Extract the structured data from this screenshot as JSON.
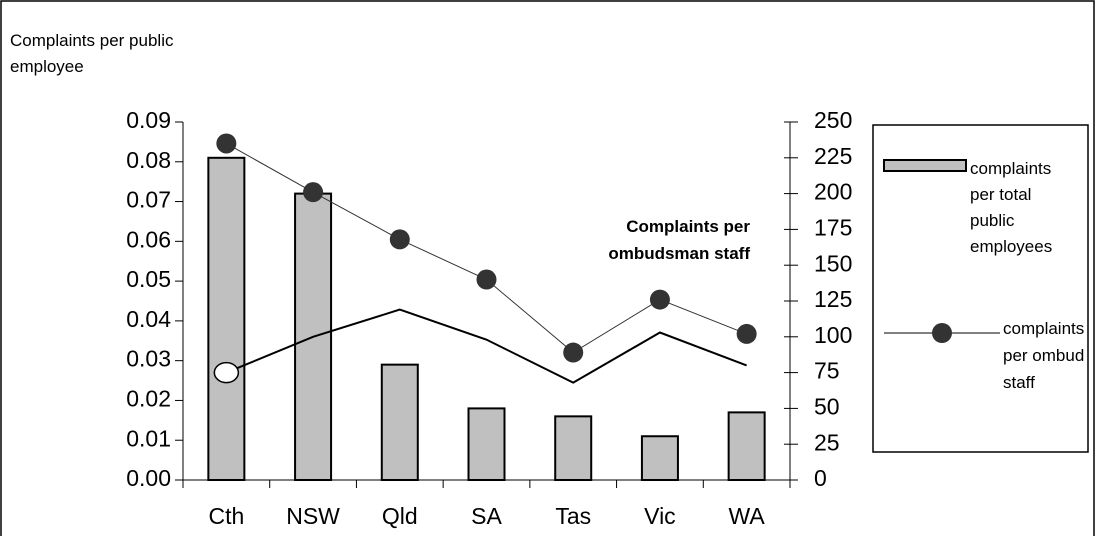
{
  "chart_data": {
    "type": "bar",
    "y_label": "Complaints per public employee",
    "annotation": "Complaints per ombudsman staff",
    "categories": [
      "Cth",
      "NSW",
      "Qld",
      "SA",
      "Tas",
      "Vic",
      "WA"
    ],
    "series": [
      {
        "name": "complaints per total public employees",
        "type": "bar",
        "color": "#c0c0c0",
        "values": [
          0.081,
          0.072,
          0.029,
          0.018,
          0.016,
          0.011,
          0.017
        ]
      },
      {
        "name": "complaints per ombud staff",
        "type": "line",
        "marker": true,
        "color": "#333333",
        "axis": "y2",
        "values": [
          235,
          201,
          168,
          140,
          89,
          126,
          102
        ]
      },
      {
        "type": "line",
        "marker": false,
        "color": "#000000",
        "axis": "y2",
        "values": [
          75,
          100,
          119,
          98,
          68,
          103,
          80
        ]
      }
    ],
    "ylim": [
      0,
      0.09
    ],
    "yticks": [
      {
        "value": 0,
        "label": "0.00"
      },
      0.01,
      0.02,
      0.03,
      0.04,
      0.05,
      0.06,
      0.07,
      0.08,
      0.09
    ],
    "y2lim": [
      0,
      250
    ],
    "y2ticks": [
      0,
      25,
      50,
      75,
      100,
      125,
      150,
      175,
      200,
      225,
      250
    ],
    "legend": "right"
  }
}
